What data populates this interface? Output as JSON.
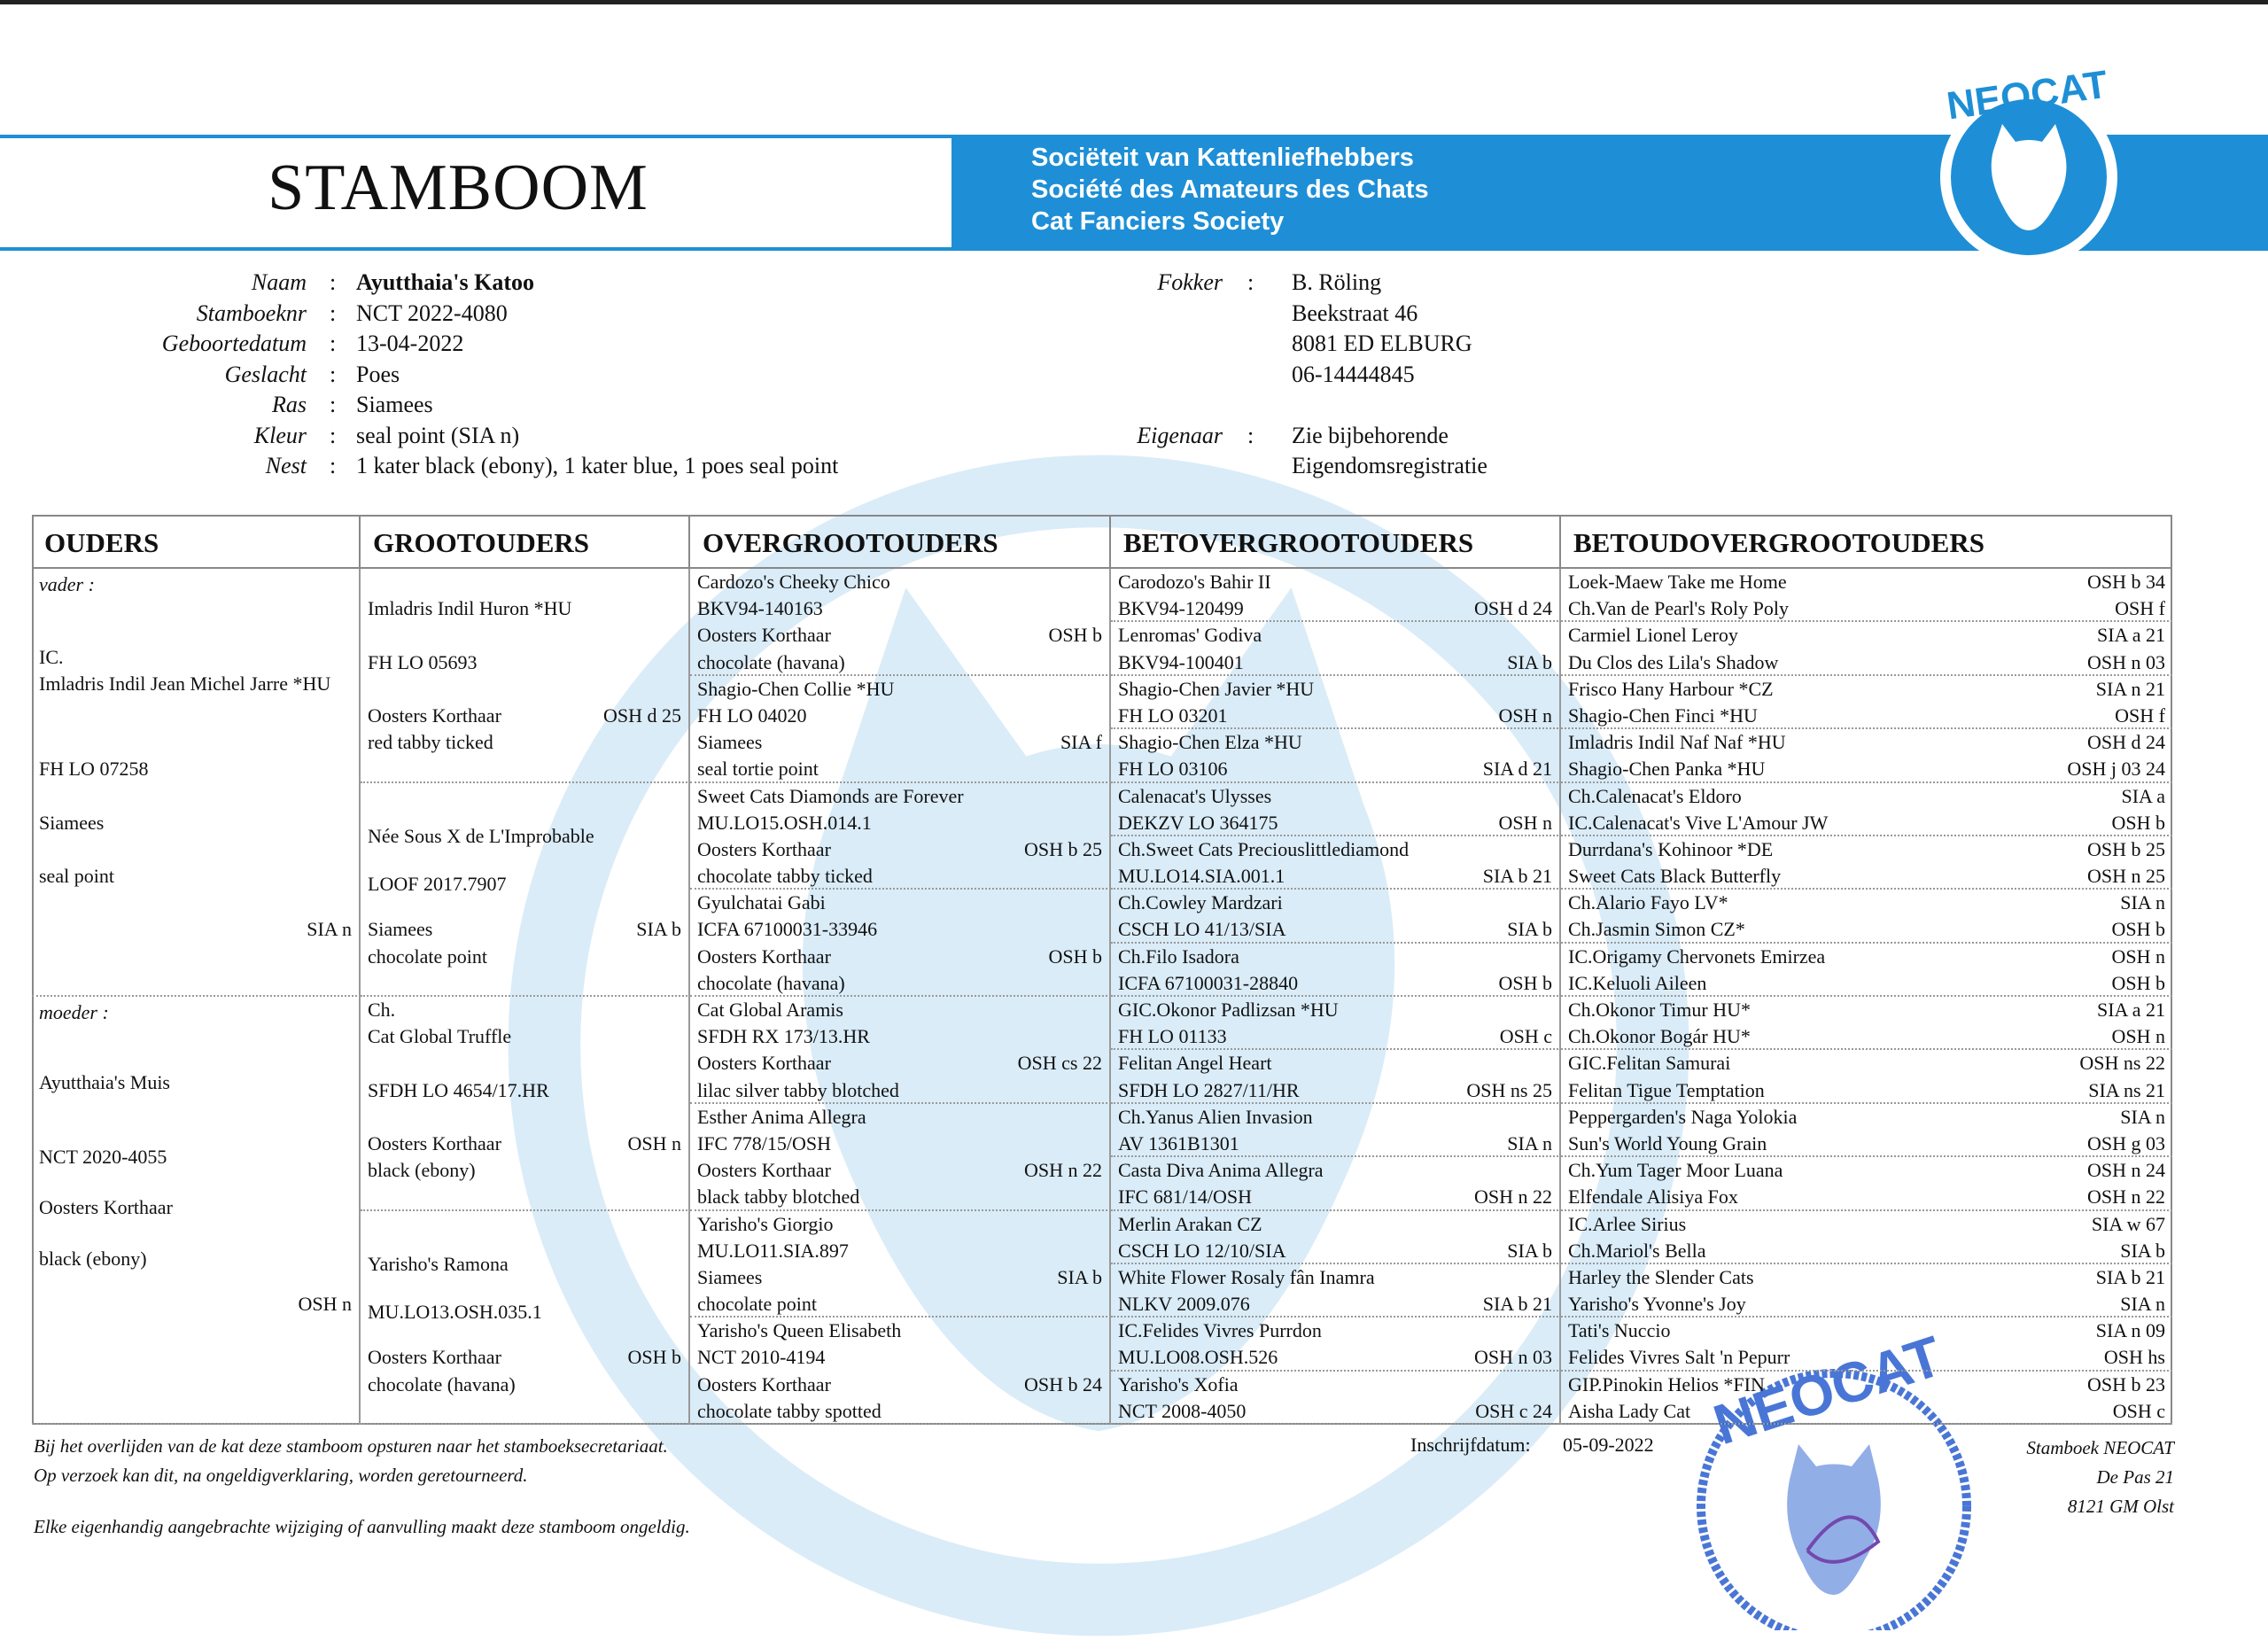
{
  "header": {
    "title": "STAMBOOM",
    "society": [
      "Sociëteit van Kattenliefhebbers",
      "Société des Amateurs des Chats",
      "Cat Fanciers Society"
    ],
    "logo_text": "NEOCAT",
    "brand_color": "#1e8fd6"
  },
  "cat": [
    {
      "label": "Naam",
      "value": "Ayutthaia's Katoo"
    },
    {
      "label": "Stamboeknr",
      "value": "NCT 2022-4080"
    },
    {
      "label": "Geboortedatum",
      "value": "13-04-2022"
    },
    {
      "label": "Geslacht",
      "value": "Poes"
    },
    {
      "label": "Ras",
      "value": "Siamees"
    },
    {
      "label": "Kleur",
      "value": "seal point   (SIA n)"
    },
    {
      "label": "Nest",
      "value": "1 kater black (ebony), 1 kater blue, 1 poes seal point"
    }
  ],
  "breeder": {
    "label": "Fokker",
    "lines": [
      "B. Röling",
      "Beekstraat 46",
      "8081 ED  ELBURG",
      "06-14444845"
    ]
  },
  "owner": {
    "label": "Eigenaar",
    "lines": [
      "Zie bijbehorende",
      "Eigendomsregistratie"
    ]
  },
  "columns": [
    "OUDERS",
    "GROOTOUDERS",
    "OVERGROOTOUDERS",
    "BETOVERGROOTOUDERS",
    "BETOUDOVERGROOTOUDERS"
  ],
  "parents": [
    {
      "label": "vader :",
      "title": "IC.",
      "name": "Imladris Indil Jean Michel Jarre *HU",
      "reg": "FH LO 07258",
      "breed": "Siamees",
      "color": "seal point",
      "code": "SIA n"
    },
    {
      "label": "moeder :",
      "title": "",
      "name": "Ayutthaia's Muis",
      "reg": "NCT 2020-4055",
      "breed": "Oosters Korthaar",
      "color": "black (ebony)",
      "code": "OSH n"
    }
  ],
  "grandparents": [
    {
      "title": "",
      "name": "Imladris Indil Huron *HU",
      "reg": "FH LO 05693",
      "breed": "Oosters Korthaar",
      "code": "OSH d 25",
      "color": "red tabby ticked"
    },
    {
      "title": "",
      "name": "Née Sous X de L'Improbable",
      "reg": "LOOF 2017.7907",
      "breed": "Siamees",
      "code": "SIA b",
      "color": "chocolate point"
    },
    {
      "title": "Ch.",
      "name": "Cat Global Truffle",
      "reg": "SFDH LO 4654/17.HR",
      "breed": "Oosters Korthaar",
      "code": "OSH n",
      "color": "black (ebony)"
    },
    {
      "title": "",
      "name": "Yarisho's Ramona",
      "reg": "MU.LO13.OSH.035.1",
      "breed": "Oosters Korthaar",
      "code": "OSH b",
      "color": "chocolate (havana)"
    }
  ],
  "great_grandparents": [
    {
      "name": "Cardozo's Cheeky Chico",
      "reg": "BKV94-140163",
      "breed": "Oosters Korthaar",
      "code": "OSH b",
      "color": "chocolate (havana)"
    },
    {
      "name": "Shagio-Chen Collie *HU",
      "reg": "FH LO 04020",
      "breed": "Siamees",
      "code": "SIA f",
      "color": "seal tortie point"
    },
    {
      "name": "Sweet Cats Diamonds are Forever",
      "reg": "MU.LO15.OSH.014.1",
      "breed": "Oosters Korthaar",
      "code": "OSH b 25",
      "color": "chocolate tabby ticked"
    },
    {
      "name": "Gyulchatai Gabi",
      "reg": "ICFA 67100031-33946",
      "breed": "Oosters Korthaar",
      "code": "OSH b",
      "color": "chocolate (havana)"
    },
    {
      "name": "Cat Global Aramis",
      "reg": "SFDH RX 173/13.HR",
      "breed": "Oosters Korthaar",
      "code": "OSH cs 22",
      "color": "lilac silver tabby blotched"
    },
    {
      "name": "Esther Anima Allegra",
      "reg": "IFC 778/15/OSH",
      "breed": "Oosters Korthaar",
      "code": "OSH n 22",
      "color": "black tabby blotched"
    },
    {
      "name": "Yarisho's Giorgio",
      "reg": "MU.LO11.SIA.897",
      "breed": "Siamees",
      "code": "SIA b",
      "color": "chocolate point"
    },
    {
      "name": "Yarisho's Queen Elisabeth",
      "reg": "NCT 2010-4194",
      "breed": "Oosters Korthaar",
      "code": "OSH b 24",
      "color": "chocolate tabby spotted"
    }
  ],
  "gg_grandparents": [
    {
      "name": "Carodozo's Bahir II",
      "reg": "BKV94-120499",
      "code": "OSH d 24"
    },
    {
      "name": "Lenromas' Godiva",
      "reg": "BKV94-100401",
      "code": "SIA b"
    },
    {
      "name": "Shagio-Chen Javier *HU",
      "reg": "FH LO 03201",
      "code": "OSH n"
    },
    {
      "name": "Shagio-Chen Elza *HU",
      "reg": "FH LO 03106",
      "code": "SIA d 21"
    },
    {
      "name": "Calenacat's Ulysses",
      "reg": "DEKZV LO 364175",
      "code": "OSH n"
    },
    {
      "name": "Ch.Sweet Cats Preciouslittlediamond",
      "reg": "MU.LO14.SIA.001.1",
      "code": "SIA b 21"
    },
    {
      "name": "Ch.Cowley Mardzari",
      "reg": "CSCH LO 41/13/SIA",
      "code": "SIA b"
    },
    {
      "name": "Ch.Filo Isadora",
      "reg": "ICFA 67100031-28840",
      "code": "OSH b"
    },
    {
      "name": "GIC.Okonor Padlizsan *HU",
      "reg": "FH LO 01133",
      "code": "OSH c"
    },
    {
      "name": "Felitan Angel Heart",
      "reg": "SFDH LO 2827/11/HR",
      "code": "OSH ns 25"
    },
    {
      "name": "Ch.Yanus Alien Invasion",
      "reg": "AV 1361B1301",
      "code": "SIA n"
    },
    {
      "name": "Casta Diva Anima Allegra",
      "reg": "IFC 681/14/OSH",
      "code": "OSH n 22"
    },
    {
      "name": "Merlin Arakan CZ",
      "reg": "CSCH LO 12/10/SIA",
      "code": "SIA b"
    },
    {
      "name": "White Flower Rosaly fân Inamra",
      "reg": "NLKV 2009.076",
      "code": "SIA b 21"
    },
    {
      "name": "IC.Felides Vivres Purrdon",
      "reg": "MU.LO08.OSH.526",
      "code": "OSH n 03"
    },
    {
      "name": "Yarisho's Xofia",
      "reg": "NCT 2008-4050",
      "code": "OSH c 24"
    }
  ],
  "ggg_grandparents": [
    [
      {
        "name": "Loek-Maew Take me Home",
        "code": "OSH b 34"
      },
      {
        "name": "Ch.Van de Pearl's Roly Poly",
        "code": "OSH f"
      }
    ],
    [
      {
        "name": "Carmiel Lionel Leroy",
        "code": "SIA a 21"
      },
      {
        "name": "Du Clos des Lila's Shadow",
        "code": "OSH n 03"
      }
    ],
    [
      {
        "name": "Frisco Hany Harbour *CZ",
        "code": "SIA n 21"
      },
      {
        "name": "Shagio-Chen Finci *HU",
        "code": "OSH f"
      }
    ],
    [
      {
        "name": "Imladris Indil Naf Naf *HU",
        "code": "OSH d 24"
      },
      {
        "name": "Shagio-Chen Panka *HU",
        "code": "OSH j 03 24"
      }
    ],
    [
      {
        "name": "Ch.Calenacat's Eldoro",
        "code": "SIA a"
      },
      {
        "name": "IC.Calenacat's Vive L'Amour JW",
        "code": "OSH b"
      }
    ],
    [
      {
        "name": "Durrdana's Kohinoor *DE",
        "code": "OSH b 25"
      },
      {
        "name": "Sweet Cats Black Butterfly",
        "code": "OSH n 25"
      }
    ],
    [
      {
        "name": "Ch.Alario Fayo LV*",
        "code": "SIA n"
      },
      {
        "name": "Ch.Jasmin Simon CZ*",
        "code": "OSH b"
      }
    ],
    [
      {
        "name": "IC.Origamy Chervonets Emirzea",
        "code": "OSH n"
      },
      {
        "name": "IC.Keluoli Aileen",
        "code": "OSH b"
      }
    ],
    [
      {
        "name": "Ch.Okonor Timur HU*",
        "code": "SIA a 21"
      },
      {
        "name": "Ch.Okonor Bogár HU*",
        "code": "OSH n"
      }
    ],
    [
      {
        "name": "GIC.Felitan Samurai",
        "code": "OSH ns 22"
      },
      {
        "name": "Felitan Tigue Temptation",
        "code": "SIA ns 21"
      }
    ],
    [
      {
        "name": "Peppergarden's  Naga Yolokia",
        "code": "SIA n"
      },
      {
        "name": "Sun's World Young Grain",
        "code": "OSH g 03"
      }
    ],
    [
      {
        "name": "Ch.Yum Tager Moor Luana",
        "code": "OSH n 24"
      },
      {
        "name": "Elfendale Alisiya Fox",
        "code": "OSH n 22"
      }
    ],
    [
      {
        "name": "IC.Arlee Sirius",
        "code": "SIA w 67"
      },
      {
        "name": "Ch.Mariol's Bella",
        "code": "SIA b"
      }
    ],
    [
      {
        "name": "Harley the Slender Cats",
        "code": "SIA b 21"
      },
      {
        "name": "Yarisho's Yvonne's Joy",
        "code": "SIA n"
      }
    ],
    [
      {
        "name": "Tati's Nuccio",
        "code": "SIA n 09"
      },
      {
        "name": "Felides Vivres Salt 'n Pepurr",
        "code": "OSH hs"
      }
    ],
    [
      {
        "name": "GIP.Pinokin Helios *FIN",
        "code": "OSH b 23"
      },
      {
        "name": "Aisha Lady Cat",
        "code": "OSH c"
      }
    ]
  ],
  "footer": {
    "notes": [
      "Bij het overlijden van de kat deze stamboom opsturen naar het stamboeksecretariaat.",
      "Op verzoek kan dit, na ongeldigverklaring, worden geretourneerd.",
      "Elke eigenhandig aangebrachte wijziging of aanvulling maakt deze stamboom ongeldig."
    ],
    "registration_label": "Inschrijfdatum:",
    "registration_date": "05-09-2022",
    "address": [
      "Stamboek NEOCAT",
      "De Pas 21",
      "8121 GM  Olst"
    ],
    "stamp_text": "NEOCAT"
  }
}
